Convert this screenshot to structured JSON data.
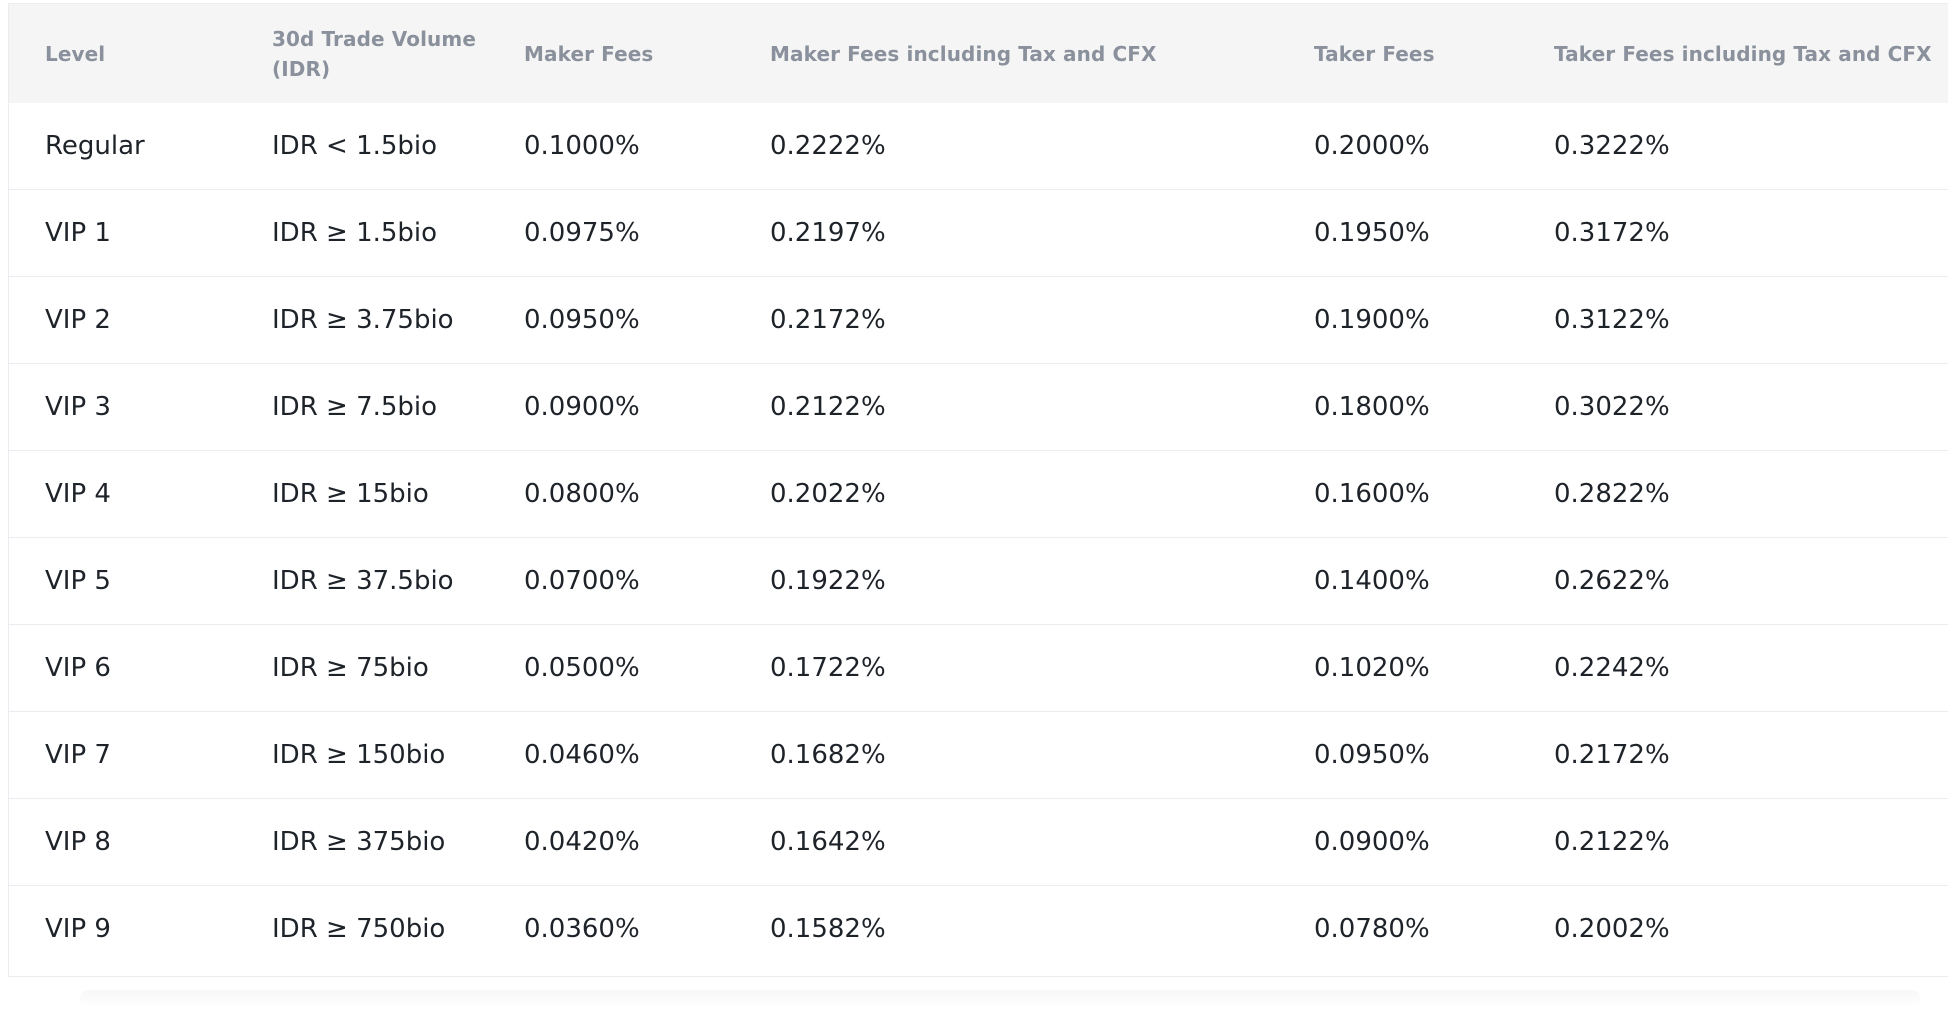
{
  "table": {
    "columns": [
      "Level",
      "30d Trade Volume (IDR)",
      "Maker Fees",
      "Maker Fees including Tax and CFX",
      "Taker Fees",
      "Taker Fees including Tax and CFX"
    ],
    "rows": [
      [
        "Regular",
        "IDR < 1.5bio",
        "0.1000%",
        "0.2222%",
        "0.2000%",
        "0.3222%"
      ],
      [
        "VIP 1",
        "IDR ≥ 1.5bio",
        "0.0975%",
        "0.2197%",
        "0.1950%",
        "0.3172%"
      ],
      [
        "VIP 2",
        "IDR ≥ 3.75bio",
        "0.0950%",
        "0.2172%",
        "0.1900%",
        "0.3122%"
      ],
      [
        "VIP 3",
        "IDR ≥ 7.5bio",
        "0.0900%",
        "0.2122%",
        "0.1800%",
        "0.3022%"
      ],
      [
        "VIP 4",
        "IDR ≥ 15bio",
        "0.0800%",
        "0.2022%",
        "0.1600%",
        "0.2822%"
      ],
      [
        "VIP 5",
        "IDR ≥ 37.5bio",
        "0.0700%",
        "0.1922%",
        "0.1400%",
        "0.2622%"
      ],
      [
        "VIP 6",
        "IDR ≥ 75bio",
        "0.0500%",
        "0.1722%",
        "0.1020%",
        "0.2242%"
      ],
      [
        "VIP 7",
        "IDR ≥ 150bio",
        "0.0460%",
        "0.1682%",
        "0.0950%",
        "0.2172%"
      ],
      [
        "VIP 8",
        "IDR ≥ 375bio",
        "0.0420%",
        "0.1642%",
        "0.0900%",
        "0.2122%"
      ],
      [
        "VIP 9",
        "IDR ≥ 750bio",
        "0.0360%",
        "0.1582%",
        "0.0780%",
        "0.2002%"
      ]
    ]
  },
  "colors": {
    "header_bg": "#f5f5f5",
    "header_text": "#8a919c",
    "body_text": "#1e2329",
    "row_border": "#eaecef"
  }
}
